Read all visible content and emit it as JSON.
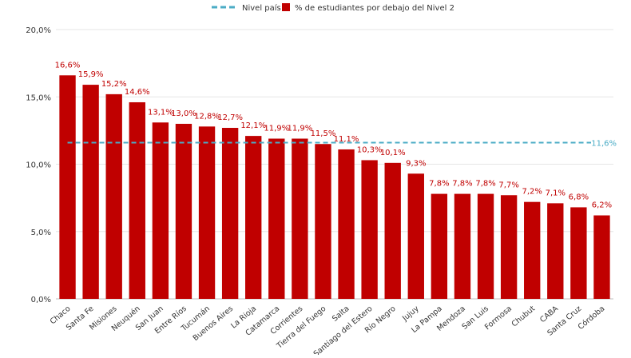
{
  "chart_data": {
    "type": "bar",
    "categories": [
      "Chaco",
      "Santa Fe",
      "Misiones",
      "Neuquén",
      "San Juan",
      "Entre Ríos",
      "Tucumán",
      "Buenos Aires",
      "La Rioja",
      "Catamarca",
      "Corrientes",
      "Tierra del Fuego",
      "Salta",
      "Santiago del Estero",
      "Río Negro",
      "Jujuy",
      "La Pampa",
      "Mendoza",
      "San Luis",
      "Formosa",
      "Chubut",
      "CABA",
      "Santa Cruz",
      "Córdoba"
    ],
    "series": [
      {
        "name": "% de estudiantes por debajo del Nivel 2",
        "values": [
          16.6,
          15.9,
          15.2,
          14.6,
          13.1,
          13.0,
          12.8,
          12.7,
          12.1,
          11.9,
          11.9,
          11.5,
          11.1,
          10.3,
          10.1,
          9.3,
          7.8,
          7.8,
          7.8,
          7.7,
          7.2,
          7.1,
          6.8,
          6.2
        ],
        "data_labels": [
          "16,6%",
          "15,9%",
          "15,2%",
          "14,6%",
          "13,1%",
          "13,0%",
          "12,8%",
          "12,7%",
          "12,1%",
          "11,9%",
          "11,9%",
          "11,5%",
          "11,1%",
          "10,3%",
          "10,1%",
          "9,3%",
          "7,8%",
          "7,8%",
          "7,8%",
          "7,7%",
          "7,2%",
          "7,1%",
          "6,8%",
          "6,2%"
        ],
        "color": "#c00000"
      }
    ],
    "reference_line": {
      "name": "Nivel país",
      "value": 11.6,
      "label": "11,6%",
      "color": "#4bacc6",
      "style": "dashed"
    },
    "y_ticks": [
      0,
      5,
      10,
      15,
      20
    ],
    "y_tick_labels": [
      "0,0%",
      "5,0%",
      "10,0%",
      "15,0%",
      "20,0%"
    ],
    "ylim": [
      0,
      20
    ],
    "grid": true,
    "legend": {
      "position": "top-center",
      "entries": [
        "Nivel país",
        "% de estudiantes por debajo del Nivel 2"
      ]
    }
  }
}
